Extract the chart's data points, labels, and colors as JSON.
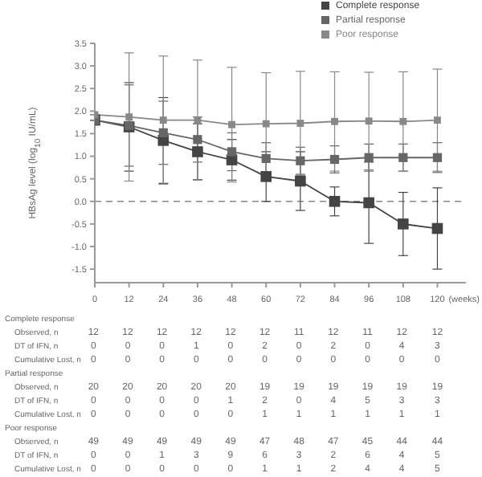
{
  "chart_data": {
    "type": "line",
    "ylabel": "HBsAg level (log$_{10}$ IU/mL)",
    "xlabel": "(weeks)",
    "x": [
      0,
      12,
      24,
      36,
      48,
      60,
      72,
      84,
      96,
      108,
      120
    ],
    "xlim": [
      0,
      130
    ],
    "xticks": [
      0,
      12,
      24,
      36,
      48,
      60,
      72,
      84,
      96,
      108,
      120
    ],
    "ylim": [
      -1.8,
      3.5
    ],
    "yticks": [
      -1.5,
      {
        "value": -1,
        "label": "-1.0"
      },
      -0.5,
      {
        "value": 0,
        "label": "0.0"
      },
      0.5,
      {
        "value": 1,
        "label": "1.0"
      },
      1.5,
      {
        "value": 2,
        "label": "2.0"
      },
      2.5,
      {
        "value": 3,
        "label": "3.0"
      },
      3.5
    ],
    "legend": "top right",
    "marker": "square",
    "line_style": "solid",
    "grid": false,
    "ref_lines": [
      {
        "axis": "y",
        "value": 0,
        "line_style": "dashed",
        "color": "#888888"
      }
    ],
    "series": [
      {
        "name": "Complete response",
        "color": "#444444",
        "values": [
          1.8,
          1.65,
          1.35,
          1.1,
          0.92,
          0.55,
          0.45,
          0.0,
          -0.03,
          -0.5,
          -0.6
        ],
        "errors": [
          null,
          0.98,
          0.95,
          0.62,
          0.45,
          0.55,
          0.65,
          0.32,
          0.9,
          0.7,
          0.9
        ]
      },
      {
        "name": "Partial response",
        "color": "#666666",
        "values": [
          1.8,
          1.68,
          1.52,
          1.37,
          1.1,
          0.95,
          0.9,
          0.93,
          0.97,
          0.97,
          0.97
        ],
        "errors": [
          null,
          0.9,
          0.7,
          0.5,
          0.42,
          0.35,
          0.3,
          0.3,
          0.3,
          0.3,
          0.33
        ]
      },
      {
        "name": "Poor response",
        "color": "#888888",
        "values": [
          1.92,
          1.87,
          1.8,
          1.8,
          1.7,
          1.72,
          1.73,
          1.77,
          1.78,
          1.77,
          1.8
        ],
        "errors": [
          null,
          1.42,
          1.42,
          1.33,
          1.27,
          1.13,
          1.15,
          1.1,
          1.08,
          1.1,
          1.13
        ]
      }
    ],
    "annotations": [
      "Complete response",
      "Observed, n",
      "12 12 12 12 12 12 11 12 11 12 12",
      "DT of IFN, n",
      "0 0 0 1 0 2 0 2 0 4 3",
      "Cumulative Lost, n",
      "0 0 0 0 0 0 0 0 0 0 0",
      "Partial response",
      "Observed, n",
      "20 20 20 20 20 19 19 19 19 19 19",
      "DT of IFN, n",
      "0 0 0 0 1 2 0 4 5 3 3",
      "Cumulative Lost, n",
      "0 0 0 0 0 1 1 1 1 1 1",
      "Poor response",
      "Observed, n",
      "49 49 49 49 49 47 48 47 45 44 44",
      "DT of IFN, n",
      "0 0 1 3 9 6 3 2 6 4 5",
      "Cumulative Lost, n",
      "0 0 0 0 0 1 1 2 4 4 5"
    ]
  }
}
